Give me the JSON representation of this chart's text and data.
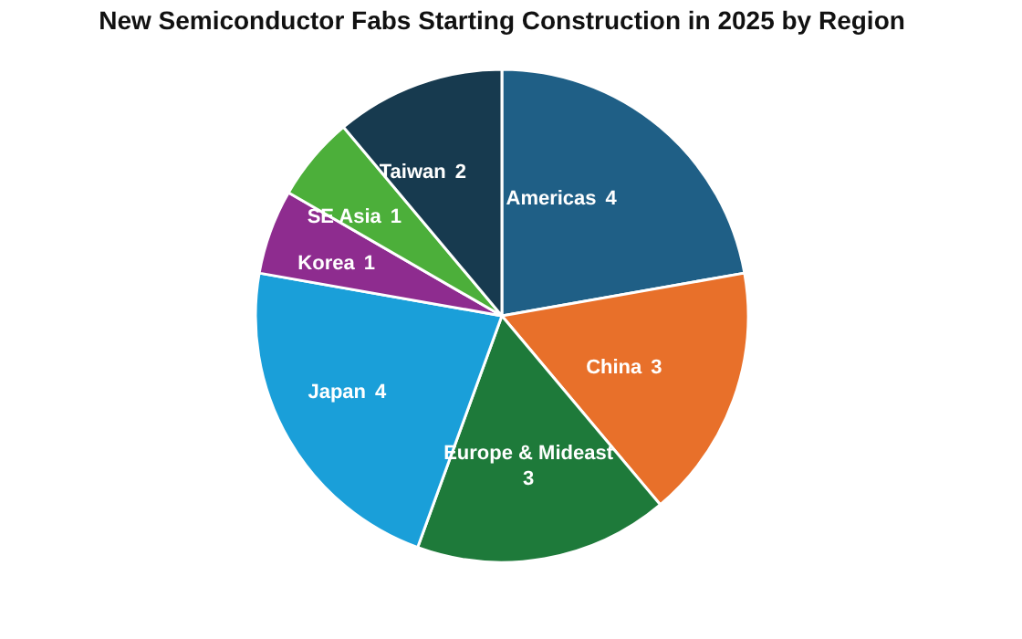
{
  "chart_data": {
    "type": "pie",
    "title": "New Semiconductor Fabs Starting Construction in 2025 by Region",
    "categories": [
      "Americas",
      "China",
      "Europe & Mideast",
      "Japan",
      "Korea",
      "SE Asia",
      "Taiwan"
    ],
    "values": [
      4,
      3,
      3,
      4,
      1,
      1,
      2
    ],
    "colors": [
      "#1f5f86",
      "#e8702a",
      "#1e7a3a",
      "#1a9fd9",
      "#8e2c8f",
      "#4caf3a",
      "#173a4f"
    ],
    "data_labels": true,
    "legend": false
  }
}
